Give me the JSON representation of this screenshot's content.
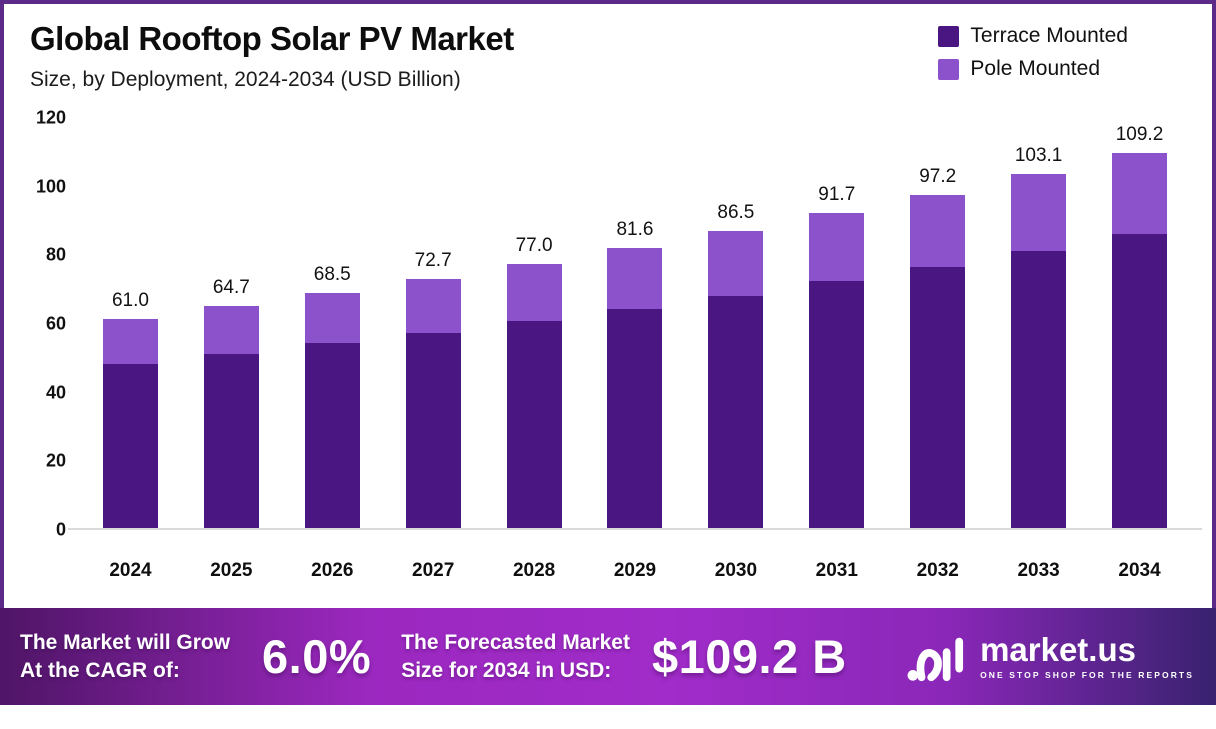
{
  "header": {
    "title": "Global Rooftop Solar PV Market",
    "subtitle": "Size, by Deployment, 2024-2034 (USD Billion)"
  },
  "legend": [
    {
      "label": "Terrace Mounted",
      "color": "#4A1782"
    },
    {
      "label": "Pole Mounted",
      "color": "#8C52CC"
    }
  ],
  "chart_data": {
    "type": "bar",
    "stacked": true,
    "title": "Global Rooftop Solar PV Market Size, by Deployment, 2024-2034 (USD Billion)",
    "categories": [
      "2024",
      "2025",
      "2026",
      "2027",
      "2028",
      "2029",
      "2030",
      "2031",
      "2032",
      "2033",
      "2034"
    ],
    "series": [
      {
        "name": "Terrace Mounted",
        "color": "#4A1782",
        "values": [
          47.8,
          50.7,
          53.9,
          56.9,
          60.3,
          63.9,
          67.7,
          71.8,
          76.1,
          80.7,
          85.5
        ]
      },
      {
        "name": "Pole Mounted",
        "color": "#8C52CC",
        "values": [
          13.2,
          14.0,
          14.6,
          15.8,
          16.7,
          17.7,
          18.8,
          19.9,
          21.1,
          22.4,
          23.7
        ]
      }
    ],
    "totals": [
      61.0,
      64.7,
      68.5,
      72.7,
      77.0,
      81.6,
      86.5,
      91.7,
      97.2,
      103.1,
      109.2
    ],
    "total_labels": [
      "61.0",
      "64.7",
      "68.5",
      "72.7",
      "77.0",
      "81.6",
      "86.5",
      "91.7",
      "97.2",
      "103.1",
      "109.2"
    ],
    "xlabel": "",
    "ylabel": "",
    "ylim": [
      0,
      120
    ],
    "yticks": [
      0,
      20,
      40,
      60,
      80,
      100,
      120
    ],
    "grid": false,
    "legend_position": "top-right",
    "baseline_color": "#dadada"
  },
  "banner": {
    "growth_text_line1": "The Market will Grow",
    "growth_text_line2": "At the CAGR of:",
    "cagr_value": "6.0%",
    "forecast_text_line1": "The Forecasted Market",
    "forecast_text_line2": "Size for 2034 in USD:",
    "forecast_value": "$109.2 B",
    "gradient": [
      "#4F1566",
      "#9B28BF",
      "#A12CC9",
      "#8A27B8",
      "#39226F"
    ],
    "logo": {
      "name": "market.us",
      "tagline": "ONE STOP SHOP FOR THE REPORTS"
    }
  },
  "colors": {
    "frame_border": "#5C2B8A",
    "background": "#ffffff"
  }
}
